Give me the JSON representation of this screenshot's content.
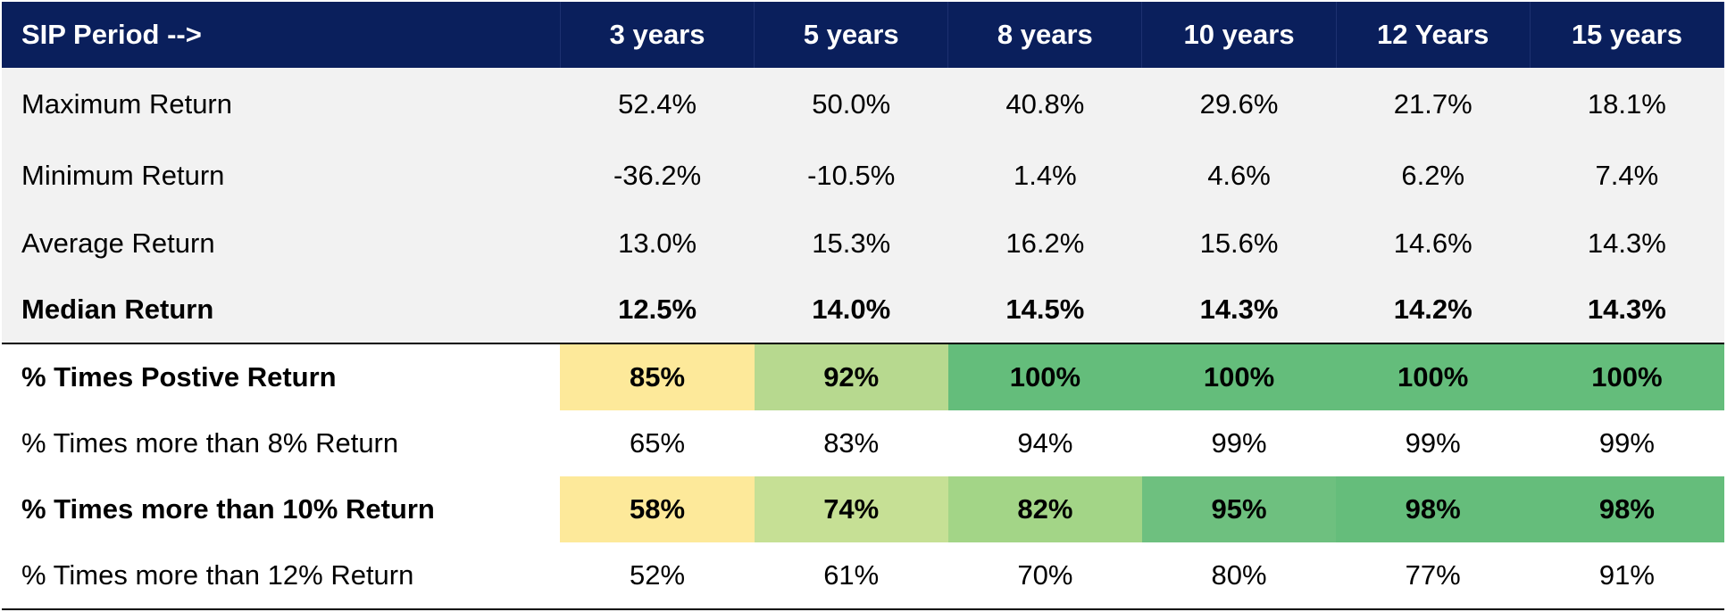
{
  "table": {
    "columns": [
      "SIP Period -->",
      "3 years",
      "5 years",
      "8 years",
      "10 years",
      "12 Years",
      "15 years"
    ],
    "rows": [
      {
        "label": "Maximum Return",
        "values": [
          "52.4%",
          "50.0%",
          "40.8%",
          "29.6%",
          "21.7%",
          "18.1%"
        ]
      },
      {
        "label": "Minimum Return",
        "values": [
          "-36.2%",
          "-10.5%",
          "1.4%",
          "4.6%",
          "6.2%",
          "7.4%"
        ]
      },
      {
        "label": "Average Return",
        "values": [
          "13.0%",
          "15.3%",
          "16.2%",
          "15.6%",
          "14.6%",
          "14.3%"
        ]
      },
      {
        "label": "Median Return",
        "values": [
          "12.5%",
          "14.0%",
          "14.5%",
          "14.3%",
          "14.2%",
          "14.3%"
        ]
      },
      {
        "label": "% Times Postive Return",
        "values": [
          "85%",
          "92%",
          "100%",
          "100%",
          "100%",
          "100%"
        ]
      },
      {
        "label": "% Times more than 8% Return",
        "values": [
          "65%",
          "83%",
          "94%",
          "99%",
          "99%",
          "99%"
        ]
      },
      {
        "label": "% Times more than 10% Return",
        "values": [
          "58%",
          "74%",
          "82%",
          "95%",
          "98%",
          "98%"
        ]
      },
      {
        "label": "% Times more than 12% Return",
        "values": [
          "52%",
          "61%",
          "70%",
          "80%",
          "77%",
          "91%"
        ]
      }
    ]
  },
  "colors": {
    "header_bg": "#0a1f5c",
    "stats_bg": "#f2f2f2",
    "heat_positive": [
      "#fde99a",
      "#b7d98f",
      "#64bd7b",
      "#64bd7b",
      "#64bd7b",
      "#64bd7b"
    ],
    "heat_10pct": [
      "#fde99a",
      "#c6e095",
      "#a3d587",
      "#6ec07f",
      "#65bd7b",
      "#65bd7b"
    ]
  }
}
